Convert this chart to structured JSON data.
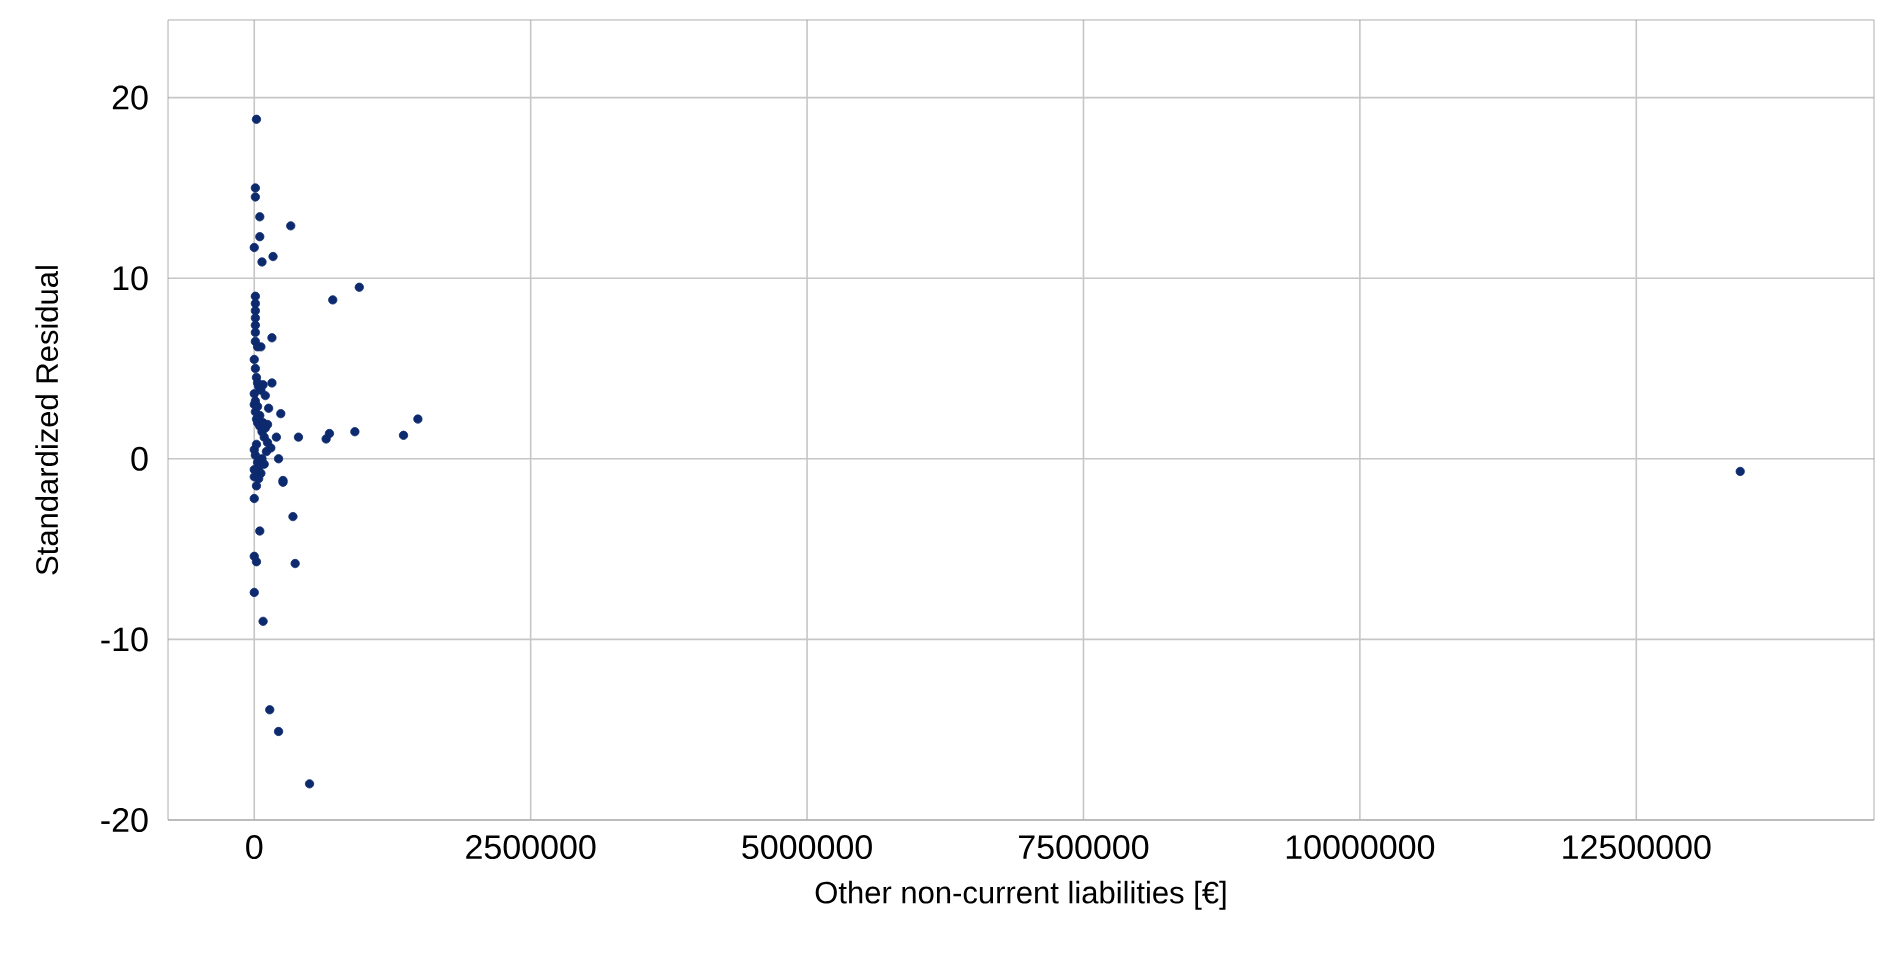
{
  "chart_data": {
    "type": "scatter",
    "xlabel": "Other non-current liabilities [€]",
    "ylabel": "Standardized Residual",
    "xlim": [
      -780000,
      14650000
    ],
    "ylim": [
      -20,
      24.3
    ],
    "xticks": [
      0,
      2500000,
      5000000,
      7500000,
      10000000,
      12500000
    ],
    "yticks": [
      -20,
      -10,
      0,
      10,
      20
    ],
    "grid": true,
    "marker": "circle",
    "series": [
      {
        "color": "#0d2a6e",
        "x": [
          20000,
          10000,
          10000,
          50000,
          330000,
          50000,
          0,
          70000,
          170000,
          950000,
          710000,
          160000,
          10000,
          10000,
          10000,
          10000,
          10000,
          10000,
          10000,
          60000,
          1480000,
          1350000,
          910000,
          680000,
          650000,
          400000,
          160000,
          240000,
          130000,
          200000,
          220000,
          260000,
          30000,
          0,
          350000,
          50000,
          0,
          20000,
          370000,
          0,
          80000,
          140000,
          220000,
          500000,
          260000,
          13440000,
          0,
          10000,
          20000,
          30000,
          40000,
          60000,
          80000,
          100000,
          0,
          10000,
          20000,
          30000,
          50000,
          70000,
          90000,
          120000,
          0,
          10000,
          30000,
          40000,
          60000,
          90000,
          110000,
          150000,
          0,
          20000,
          40000,
          70000,
          100000,
          0,
          10000,
          30000,
          50000,
          80000,
          120000,
          0,
          20000
        ],
        "values": [
          18.8,
          15.0,
          14.5,
          13.4,
          12.9,
          12.3,
          11.7,
          10.9,
          11.2,
          9.5,
          8.8,
          6.7,
          9.0,
          8.6,
          8.2,
          7.8,
          7.4,
          7.0,
          6.5,
          6.2,
          2.2,
          1.3,
          1.5,
          1.4,
          1.1,
          1.2,
          4.2,
          2.5,
          2.8,
          1.2,
          0.0,
          -1.3,
          6.2,
          -2.2,
          -3.2,
          -4.0,
          -5.4,
          -5.7,
          -5.8,
          -7.4,
          -9.0,
          -13.9,
          -15.1,
          -18.0,
          -1.2,
          -0.7,
          5.5,
          5.0,
          4.5,
          4.2,
          4.0,
          3.8,
          4.1,
          3.5,
          3.0,
          2.6,
          2.2,
          2.0,
          1.8,
          1.5,
          1.2,
          0.9,
          0.5,
          0.2,
          -0.2,
          -0.5,
          -0.8,
          -0.3,
          0.4,
          0.6,
          -1.0,
          -1.5,
          -1.1,
          0.0,
          1.7,
          3.6,
          3.2,
          2.9,
          2.4,
          2.0,
          1.9,
          -0.6,
          0.8
        ]
      }
    ]
  }
}
